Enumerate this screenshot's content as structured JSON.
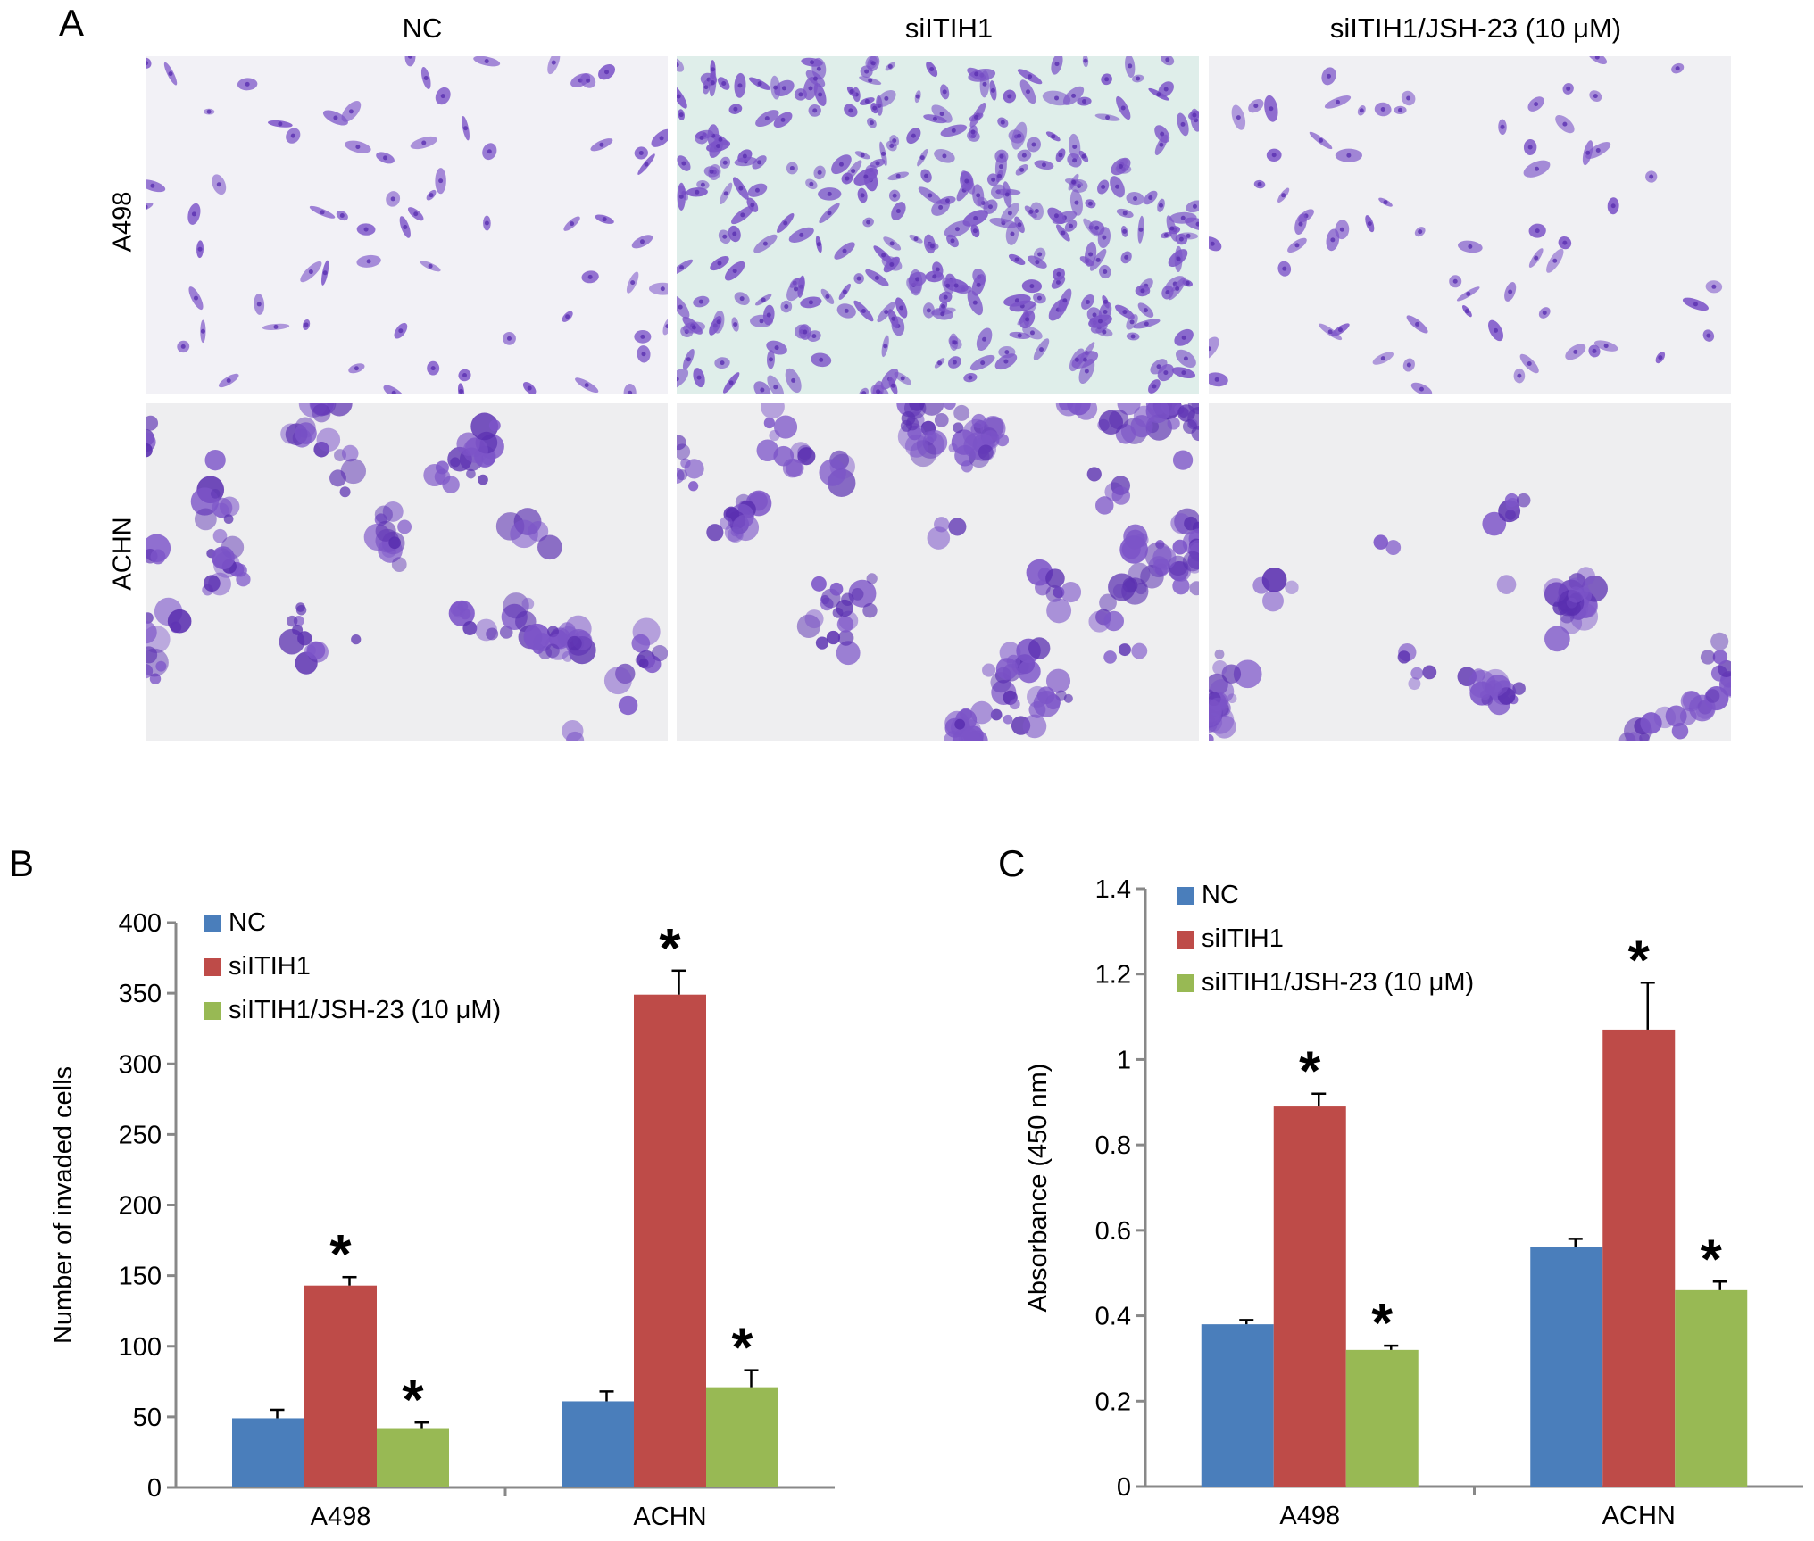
{
  "panel_a": {
    "letter": "A",
    "columns": [
      "NC",
      "siITIH1",
      "siITIH1/JSH-23 (10 μM)"
    ],
    "rows": [
      "A498",
      "ACHN"
    ],
    "image_desc_colors": {
      "background_a498_nc": "#f2f1f6",
      "background_a498_si": "#dfeeea",
      "background_a498_jsh": "#f0f0f3",
      "background_achn": "#eeeef0",
      "stain": "#7c54c8",
      "stain_dark": "#5a2fb0"
    }
  },
  "chart_data": [
    {
      "letter": "B",
      "type": "bar",
      "categories": [
        "A498",
        "ACHN"
      ],
      "ylabel": "Number of invaded cells",
      "ylim": [
        0,
        400
      ],
      "yticks": [
        "0",
        "50",
        "100",
        "150",
        "200",
        "250",
        "300",
        "350",
        "400"
      ],
      "series": [
        {
          "name": "NC",
          "color": "#4a7ebb",
          "values": [
            49,
            61
          ],
          "errors": [
            6,
            7
          ],
          "star": [
            false,
            false
          ]
        },
        {
          "name": "siITIH1",
          "color": "#be4b48",
          "values": [
            143,
            349
          ],
          "errors": [
            6,
            17
          ],
          "star": [
            true,
            true
          ]
        },
        {
          "name": "siITIH1/JSH-23 (10 μM)",
          "color": "#98b954",
          "values": [
            42,
            71
          ],
          "errors": [
            4,
            12
          ],
          "star": [
            true,
            true
          ]
        }
      ],
      "star_symbol": "*",
      "legend_position": "top-left"
    },
    {
      "letter": "C",
      "type": "bar",
      "categories": [
        "A498",
        "ACHN"
      ],
      "ylabel": "Absorbance (450 nm)",
      "ylim": [
        0,
        1.4
      ],
      "yticks": [
        "0",
        "0.2",
        "0.4",
        "0.6",
        "0.8",
        "1",
        "1.2",
        "1.4"
      ],
      "series": [
        {
          "name": "NC",
          "color": "#4a7ebb",
          "values": [
            0.38,
            0.56
          ],
          "errors": [
            0.01,
            0.02
          ],
          "star": [
            false,
            false
          ]
        },
        {
          "name": "siITIH1",
          "color": "#be4b48",
          "values": [
            0.89,
            1.07
          ],
          "errors": [
            0.03,
            0.11
          ],
          "star": [
            true,
            true
          ]
        },
        {
          "name": "siITIH1/JSH-23 (10 μM)",
          "color": "#98b954",
          "values": [
            0.32,
            0.46
          ],
          "errors": [
            0.01,
            0.02
          ],
          "star": [
            true,
            true
          ]
        }
      ],
      "star_symbol": "*",
      "legend_position": "top-left"
    }
  ]
}
